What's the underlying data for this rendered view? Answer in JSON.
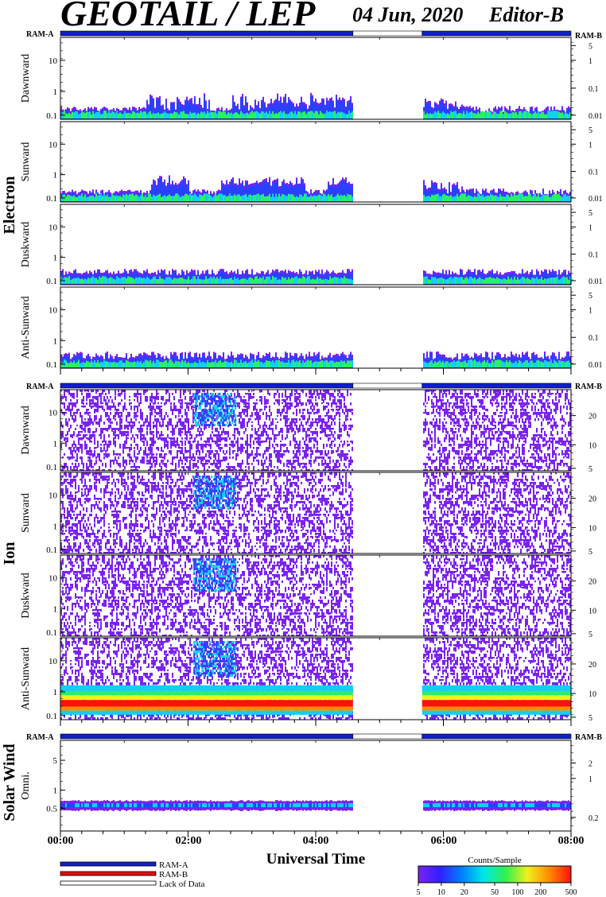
{
  "header": {
    "title": "GEOTAIL / LEP",
    "date": "04 Jun, 2020",
    "editor": "Editor-B"
  },
  "ram_labels": {
    "a": "RAM-A",
    "b": "RAM-B"
  },
  "groups": {
    "electron": "Electron",
    "ion": "Ion",
    "solar_wind": "Solar Wind"
  },
  "colors": {
    "ram_a": "#1020c8",
    "ram_b": "#e01010",
    "violet": "#7a22f0",
    "blue": "#2a40ff",
    "cyan": "#10d0f0",
    "green": "#28f068",
    "yellow": "#f0f020",
    "orange": "#ff8c00",
    "red": "#ff1010"
  },
  "chart_data": {
    "type": "heatmap",
    "x_axis": {
      "label": "Universal Time",
      "range": [
        "00:00",
        "08:00"
      ],
      "tick_labels": [
        "00:00",
        "02:00",
        "04:00",
        "06:00",
        "08:00"
      ]
    },
    "data_gap": [
      "04:35",
      "05:40"
    ],
    "status_bar": [
      {
        "state": "RAM-A",
        "from": "00:00",
        "to": "04:35"
      },
      {
        "state": "Lack of Data",
        "from": "04:35",
        "to": "05:40"
      },
      {
        "state": "RAM-A",
        "from": "05:40",
        "to": "08:00"
      }
    ],
    "panels": [
      {
        "group": "Electron",
        "label": "Dawnward",
        "y_ticks": [
          "10",
          "1",
          "0.1"
        ],
        "right_ticks": [
          "5",
          "1",
          "0.1",
          "0.01"
        ]
      },
      {
        "group": "Electron",
        "label": "Sunward",
        "y_ticks": [
          "10",
          "1",
          "0.1"
        ],
        "right_ticks": [
          "5",
          "1",
          "0.1",
          "0.01"
        ]
      },
      {
        "group": "Electron",
        "label": "Duskward",
        "y_ticks": [
          "10",
          "1",
          "0.1"
        ],
        "right_ticks": [
          "5",
          "1",
          "0.1",
          "0.01"
        ]
      },
      {
        "group": "Electron",
        "label": "Anti-Sunward",
        "y_ticks": [
          "10",
          "1",
          "0.1"
        ],
        "right_ticks": [
          "5",
          "1",
          "0.1",
          "0.01"
        ]
      },
      {
        "group": "Ion",
        "label": "Dawnward",
        "y_ticks": [
          "10",
          "1",
          "0.1"
        ],
        "right_ticks": [
          "20",
          "10",
          "5"
        ]
      },
      {
        "group": "Ion",
        "label": "Sunward",
        "y_ticks": [
          "10",
          "1",
          "0.1"
        ],
        "right_ticks": [
          "20",
          "10",
          "5"
        ]
      },
      {
        "group": "Ion",
        "label": "Duskward",
        "y_ticks": [
          "10",
          "1",
          "0.1"
        ],
        "right_ticks": [
          "20",
          "10",
          "5"
        ]
      },
      {
        "group": "Ion",
        "label": "Anti-Sunward",
        "y_ticks": [
          "10",
          "1",
          "0.1"
        ],
        "right_ticks": [
          "20",
          "10",
          "5"
        ]
      },
      {
        "group": "Solar Wind",
        "label": "Omni.",
        "y_ticks": [
          "5",
          "1",
          "0.5"
        ],
        "right_ticks": [
          "2",
          "1",
          "0.2"
        ]
      }
    ],
    "legend": [
      {
        "name": "RAM-A",
        "color": "#1020c8"
      },
      {
        "name": "RAM-B",
        "color": "#e01010"
      },
      {
        "name": "Lack of Data",
        "color": "#ffffff"
      }
    ],
    "colorbar": {
      "title": "Counts/Sample",
      "ticks": [
        "5",
        "10",
        "20",
        "50",
        "100",
        "200",
        "500"
      ],
      "colors": [
        "#7a22f0",
        "#3020ff",
        "#0080ff",
        "#00e8e8",
        "#30f050",
        "#f0f020",
        "#ff8c00",
        "#ff1010"
      ]
    }
  }
}
